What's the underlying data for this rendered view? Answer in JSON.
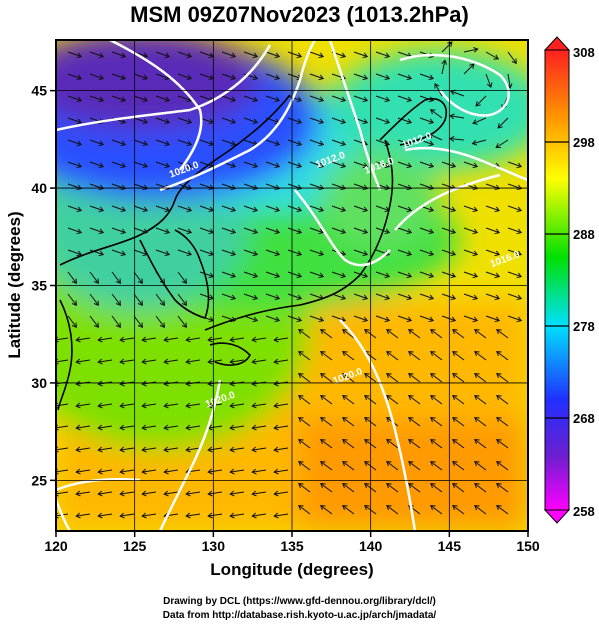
{
  "title": "MSM 09Z07Nov2023 (1013.2hPa)",
  "credits": {
    "line1": "Drawing by DCL (https://www.gfd-dennou.org/library/dcl/)",
    "line2": "Data from http://database.rish.kyoto-u.ac.jp/arch/jmadata/"
  },
  "chart_data": {
    "type": "heatmap",
    "title": "MSM 09Z07Nov2023 (1013.2hPa)",
    "xlabel": "Longitude (degrees)",
    "ylabel": "Latitude  (degrees)",
    "xlim": [
      120,
      150
    ],
    "ylim": [
      22.4,
      47.6
    ],
    "x_ticks": [
      120,
      125,
      130,
      135,
      140,
      145,
      150
    ],
    "y_ticks": [
      25,
      30,
      35,
      40,
      45
    ],
    "grid": true,
    "colorbar": {
      "min": 258,
      "max": 308,
      "ticks": [
        308,
        298,
        288,
        278,
        268,
        258
      ],
      "colors": [
        "#ff00ff",
        "#2020ff",
        "#00e0ff",
        "#00e000",
        "#ffff00",
        "#ff9900",
        "#ff2020"
      ]
    },
    "contour_labels": [
      {
        "text": "1020.0",
        "lon": 128.2,
        "lat": 40.8
      },
      {
        "text": "1012.0",
        "lon": 137.5,
        "lat": 41.3
      },
      {
        "text": "1016.0",
        "lon": 140.6,
        "lat": 41.0
      },
      {
        "text": "1012.0",
        "lon": 143.0,
        "lat": 42.3
      },
      {
        "text": "1020.0",
        "lon": 130.5,
        "lat": 29.0
      },
      {
        "text": "1020.0",
        "lon": 138.6,
        "lat": 30.2
      },
      {
        "text": "1016.0",
        "lon": 148.6,
        "lat": 36.2
      }
    ]
  }
}
